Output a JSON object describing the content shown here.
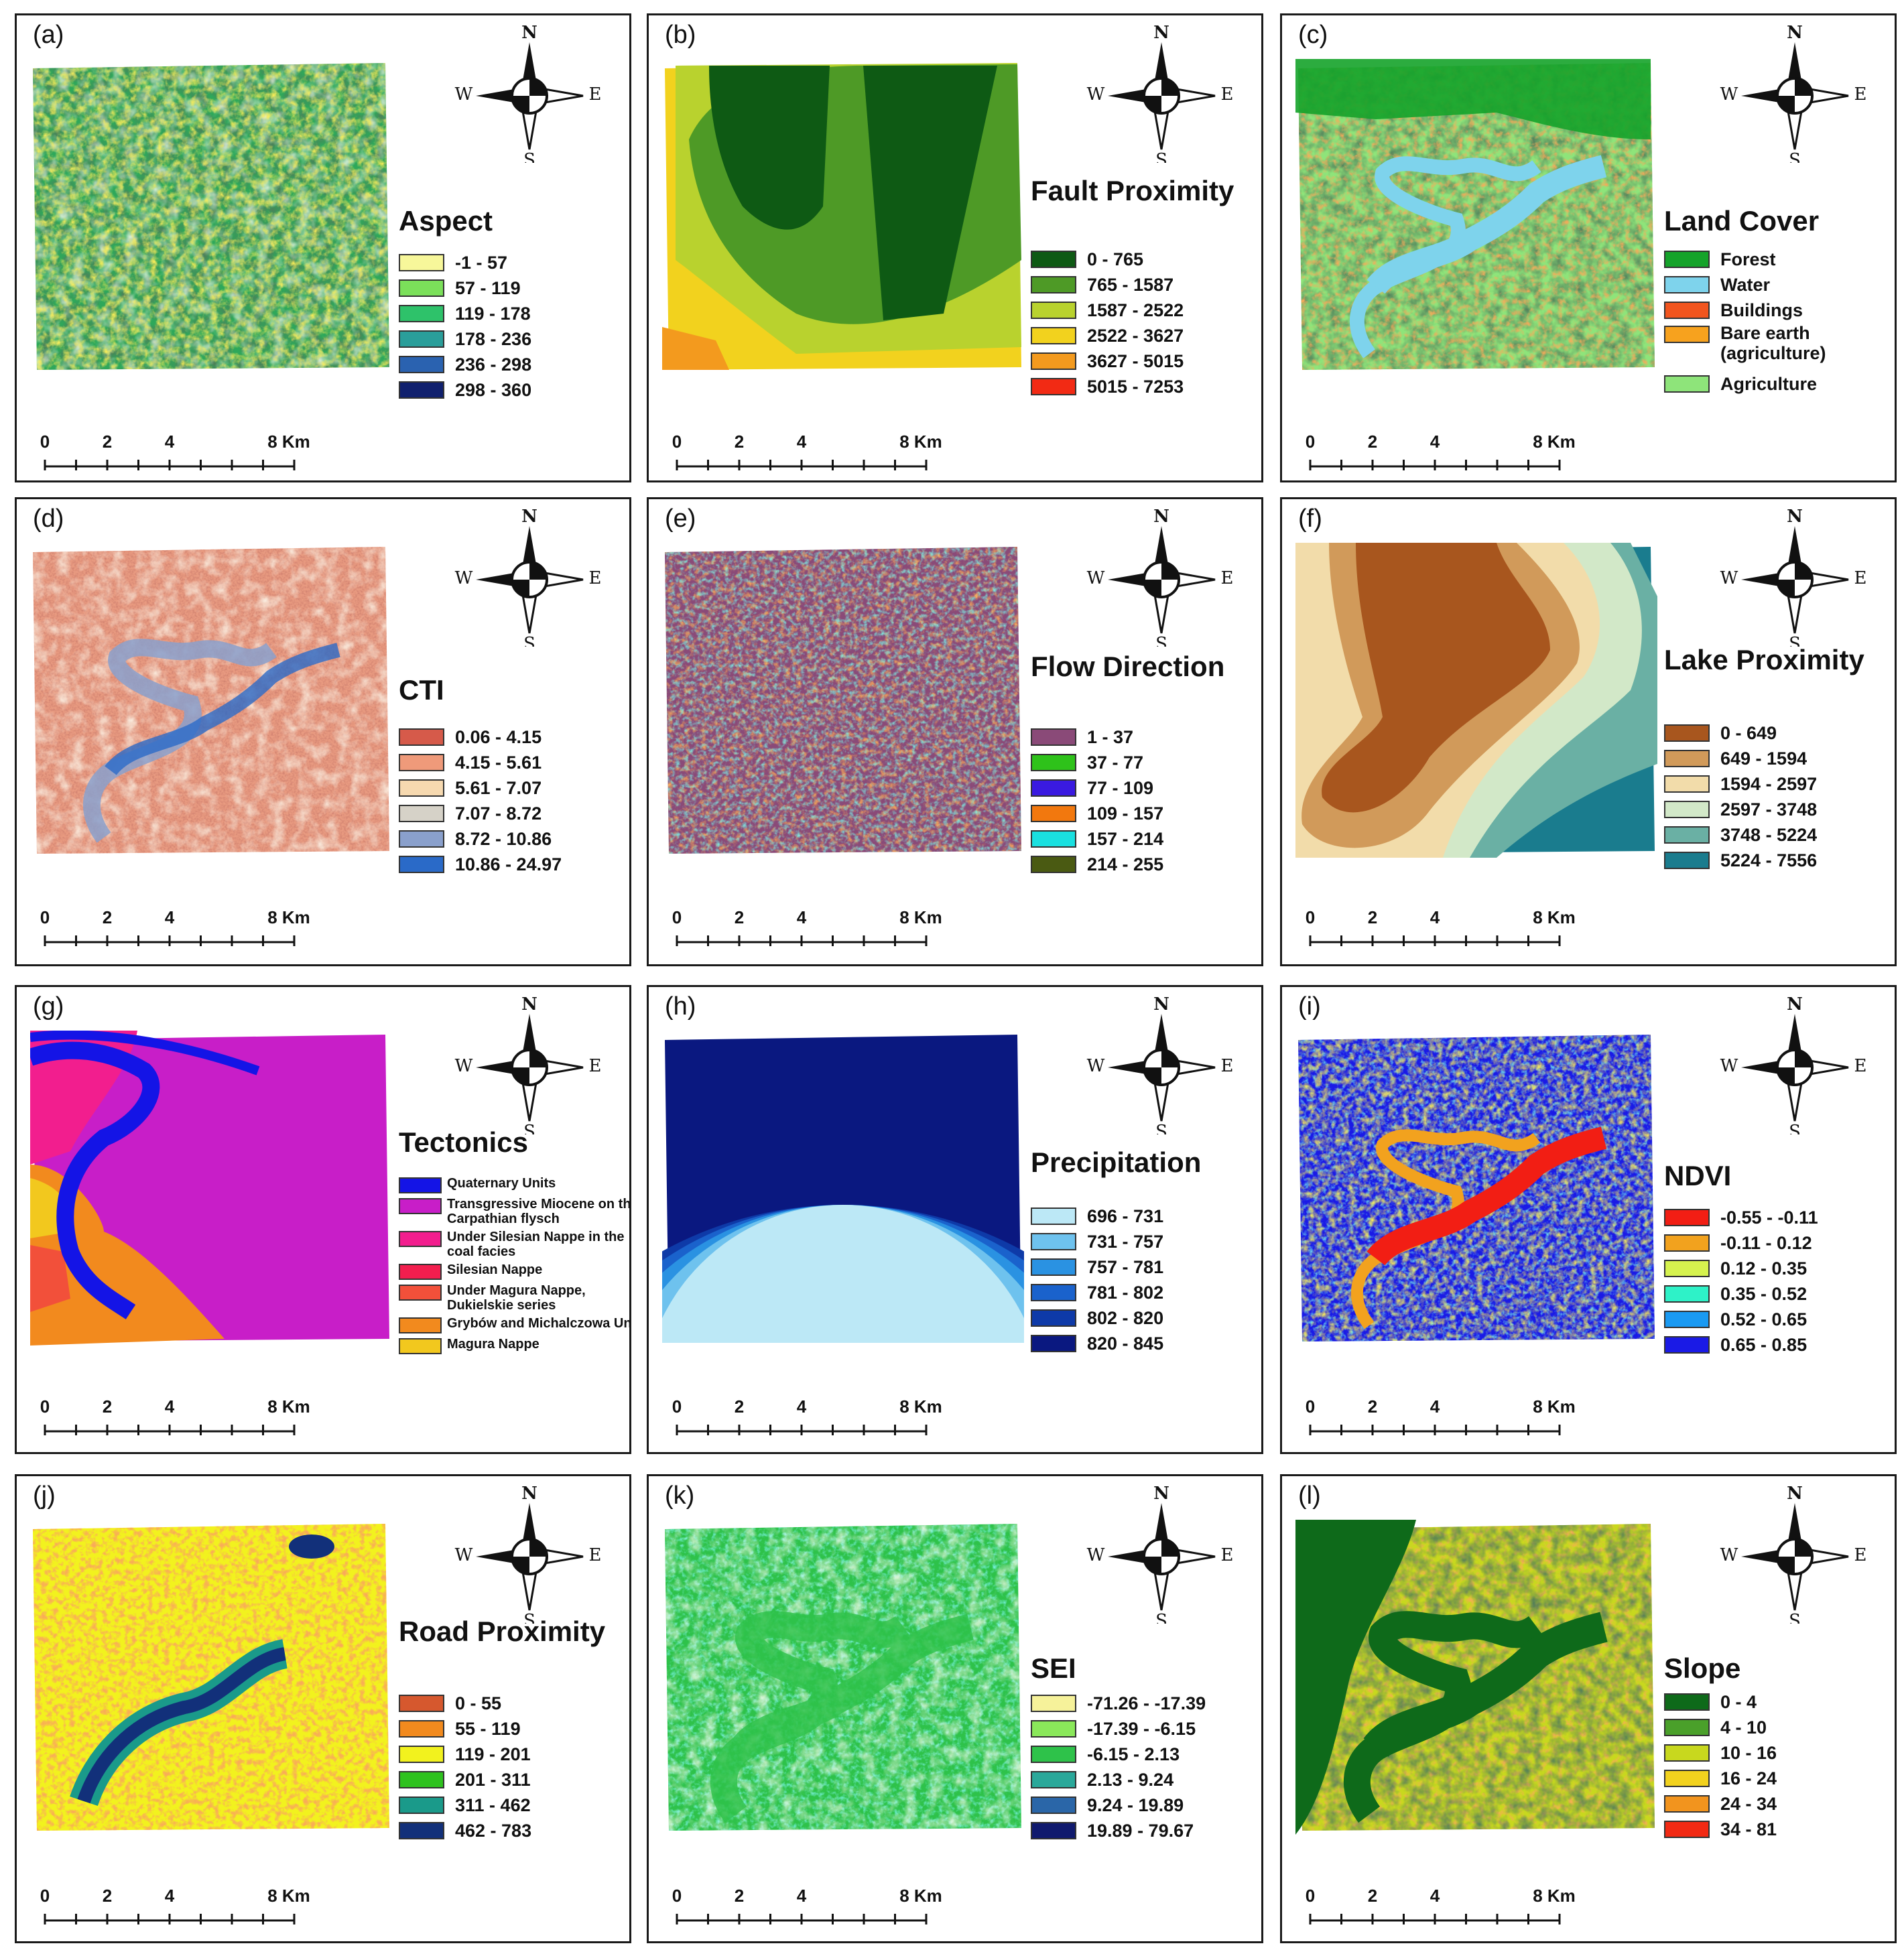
{
  "panels": [
    {
      "id": "a",
      "label": "(a)",
      "title": "Aspect",
      "classes": [
        {
          "text": "-1 - 57",
          "color": "#f7f79a"
        },
        {
          "text": "57 - 119",
          "color": "#7be05a"
        },
        {
          "text": "119 - 178",
          "color": "#2ec26a"
        },
        {
          "text": "178 - 236",
          "color": "#2a9e9a"
        },
        {
          "text": "236 - 298",
          "color": "#2a62b0"
        },
        {
          "text": "298 - 360",
          "color": "#10206e"
        }
      ]
    },
    {
      "id": "b",
      "label": "(b)",
      "title": "Fault Proximity",
      "classes": [
        {
          "text": "0 - 765",
          "color": "#0e5a14"
        },
        {
          "text": "765 - 1587",
          "color": "#4e9a26"
        },
        {
          "text": "1587 - 2522",
          "color": "#b9d22e"
        },
        {
          "text": "2522 - 3627",
          "color": "#f2d21e"
        },
        {
          "text": "3627 - 5015",
          "color": "#f39a1e"
        },
        {
          "text": "5015 - 7253",
          "color": "#f22a14"
        }
      ]
    },
    {
      "id": "c",
      "label": "(c)",
      "title": "Land Cover",
      "classes": [
        {
          "text": "Forest",
          "color": "#15a32a"
        },
        {
          "text": "Water",
          "color": "#7ed3ec"
        },
        {
          "text": "Buildings",
          "color": "#f2551e"
        },
        {
          "text": "Bare earth (agriculture)",
          "color": "#f7a21e"
        },
        {
          "text": "Agriculture",
          "color": "#8ee47a"
        }
      ]
    },
    {
      "id": "d",
      "label": "(d)",
      "title": "CTI",
      "classes": [
        {
          "text": "0.06 - 4.15",
          "color": "#d65a4a"
        },
        {
          "text": "4.15 - 5.61",
          "color": "#ef9a7a"
        },
        {
          "text": "5.61 - 7.07",
          "color": "#f6d9b0"
        },
        {
          "text": "7.07 - 8.72",
          "color": "#d6d2c8"
        },
        {
          "text": "8.72 - 10.86",
          "color": "#8aa0cc"
        },
        {
          "text": "10.86 - 24.97",
          "color": "#2a6ac8"
        }
      ]
    },
    {
      "id": "e",
      "label": "(e)",
      "title": "Flow Direction",
      "classes": [
        {
          "text": "1 - 37",
          "color": "#8a4a78"
        },
        {
          "text": "37 - 77",
          "color": "#2ec21a"
        },
        {
          "text": "77 - 109",
          "color": "#3a1ae0"
        },
        {
          "text": "109 - 157",
          "color": "#f2780e"
        },
        {
          "text": "157 - 214",
          "color": "#1ae0e0"
        },
        {
          "text": "214 - 255",
          "color": "#4a5a12"
        }
      ]
    },
    {
      "id": "f",
      "label": "(f)",
      "title": "Lake Proximity",
      "classes": [
        {
          "text": "0 - 649",
          "color": "#a8561e"
        },
        {
          "text": "649 - 1594",
          "color": "#d19a5a"
        },
        {
          "text": "1594 - 2597",
          "color": "#f2dcaa"
        },
        {
          "text": "2597 - 3748",
          "color": "#d2e8c8"
        },
        {
          "text": "3748 - 5224",
          "color": "#6ab0a4"
        },
        {
          "text": "5224 - 7556",
          "color": "#1a7c8e"
        }
      ]
    },
    {
      "id": "g",
      "label": "(g)",
      "title": "Tectonics",
      "classes": [
        {
          "text": "Quaternary Units",
          "color": "#1414e6"
        },
        {
          "text": "Transgressive Miocene on the Carpathian flysch",
          "color": "#c81ec8"
        },
        {
          "text": "Under Silesian Nappe in the coal facies",
          "color": "#f21e8e"
        },
        {
          "text": "Silesian Nappe",
          "color": "#f21e4e"
        },
        {
          "text": "Under Magura Nappe, Dukielskie series",
          "color": "#f2503a"
        },
        {
          "text": "Grybów and Michalczowa Unit",
          "color": "#f28a1e"
        },
        {
          "text": "Magura Nappe",
          "color": "#f2c81e"
        }
      ]
    },
    {
      "id": "h",
      "label": "(h)",
      "title": "Precipitation",
      "classes": [
        {
          "text": "696 - 731",
          "color": "#bce8f6"
        },
        {
          "text": "731 - 757",
          "color": "#6ec2ee"
        },
        {
          "text": "757 - 781",
          "color": "#2a92e2"
        },
        {
          "text": "781 - 802",
          "color": "#1a62cc"
        },
        {
          "text": "802 - 820",
          "color": "#0e3aa8"
        },
        {
          "text": "820 - 845",
          "color": "#0a1880"
        }
      ]
    },
    {
      "id": "i",
      "label": "(i)",
      "title": "NDVI",
      "classes": [
        {
          "text": "-0.55 - -0.11",
          "color": "#f21e14"
        },
        {
          "text": "-0.11 - 0.12",
          "color": "#f2a21e"
        },
        {
          "text": "0.12 - 0.35",
          "color": "#d6f24e"
        },
        {
          "text": "0.35 - 0.52",
          "color": "#2ef2c8"
        },
        {
          "text": "0.52 - 0.65",
          "color": "#1a9af2"
        },
        {
          "text": "0.65 - 0.85",
          "color": "#1a1ae6"
        }
      ]
    },
    {
      "id": "j",
      "label": "(j)",
      "title": "Road Proximity",
      "classes": [
        {
          "text": "0 - 55",
          "color": "#d6582e"
        },
        {
          "text": "55 - 119",
          "color": "#f28a1e"
        },
        {
          "text": "119 - 201",
          "color": "#f2f21e"
        },
        {
          "text": "201 - 311",
          "color": "#2ec21e"
        },
        {
          "text": "311 - 462",
          "color": "#1a9a8a"
        },
        {
          "text": "462 - 783",
          "color": "#12307a"
        }
      ]
    },
    {
      "id": "k",
      "label": "(k)",
      "title": "SEI",
      "classes": [
        {
          "text": "-71.26 - -17.39",
          "color": "#f6f29a"
        },
        {
          "text": "-17.39 - -6.15",
          "color": "#8ae85a"
        },
        {
          "text": "-6.15 - 2.13",
          "color": "#2ec24a"
        },
        {
          "text": "2.13 - 9.24",
          "color": "#2aa89a"
        },
        {
          "text": "9.24 - 19.89",
          "color": "#2a66a8"
        },
        {
          "text": "19.89 - 79.67",
          "color": "#101a6e"
        }
      ]
    },
    {
      "id": "l",
      "label": "(l)",
      "title": "Slope",
      "classes": [
        {
          "text": "0 - 4",
          "color": "#0e6a1a"
        },
        {
          "text": "4 - 10",
          "color": "#4aa02a"
        },
        {
          "text": "10 - 16",
          "color": "#c8d81e"
        },
        {
          "text": "16 - 24",
          "color": "#f2d21e"
        },
        {
          "text": "24 - 34",
          "color": "#f2941e"
        },
        {
          "text": "34 - 81",
          "color": "#f22a14"
        }
      ]
    }
  ],
  "compass": {
    "n": "N",
    "s": "S",
    "e": "E",
    "w": "W"
  },
  "scale": {
    "ticks": [
      "0",
      "2",
      "4",
      "8 Km"
    ]
  }
}
